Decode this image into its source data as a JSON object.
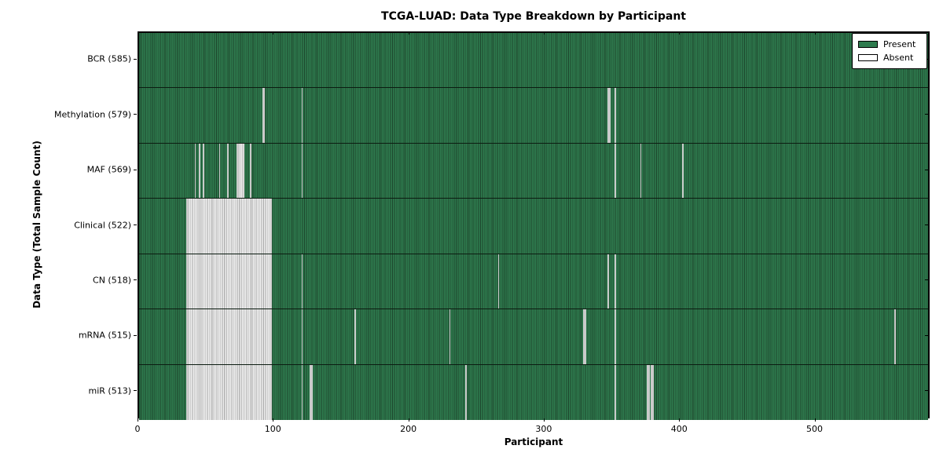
{
  "chart_data": {
    "type": "heatmap",
    "title": "TCGA-LUAD: Data Type Breakdown by Participant",
    "xlabel": "Participant",
    "ylabel": "Data Type (Total Sample Count)",
    "x_range": [
      0,
      585
    ],
    "x_ticks": [
      0,
      100,
      200,
      300,
      400,
      500
    ],
    "grid": false,
    "legend_position": "upper right",
    "legend": [
      {
        "label": "Present",
        "color": "#2e7b4e"
      },
      {
        "label": "Absent",
        "color": "#ffffff"
      }
    ],
    "present_color": "#2e7b4e",
    "present_edge_color": "#1d452c",
    "absent_color": "#efefef",
    "absent_edge_color": "#a4a4a4",
    "rows": [
      {
        "name": "BCR",
        "label": "BCR (585)",
        "present_count": 585,
        "absent_ranges": []
      },
      {
        "name": "Methylation",
        "label": "Methylation (579)",
        "present_count": 579,
        "absent_ranges": [
          [
            91,
            92
          ],
          [
            120,
            120
          ],
          [
            346,
            347
          ],
          [
            351,
            351
          ]
        ]
      },
      {
        "name": "MAF",
        "label": "MAF (569)",
        "present_count": 569,
        "absent_ranges": [
          [
            41,
            41
          ],
          [
            44,
            44
          ],
          [
            47,
            47
          ],
          [
            59,
            59
          ],
          [
            65,
            65
          ],
          [
            72,
            77
          ],
          [
            82,
            82
          ],
          [
            120,
            120
          ],
          [
            351,
            351
          ],
          [
            370,
            370
          ],
          [
            401,
            401
          ]
        ]
      },
      {
        "name": "Clinical",
        "label": "Clinical (522)",
        "present_count": 522,
        "absent_ranges": [
          [
            35,
            97
          ]
        ]
      },
      {
        "name": "CN",
        "label": "CN (518)",
        "present_count": 518,
        "absent_ranges": [
          [
            35,
            97
          ],
          [
            120,
            120
          ],
          [
            265,
            265
          ],
          [
            346,
            346
          ],
          [
            351,
            351
          ]
        ]
      },
      {
        "name": "mRNA",
        "label": "mRNA (515)",
        "present_count": 515,
        "absent_ranges": [
          [
            35,
            97
          ],
          [
            120,
            120
          ],
          [
            159,
            159
          ],
          [
            229,
            229
          ],
          [
            328,
            329
          ],
          [
            351,
            351
          ],
          [
            558,
            558
          ]
        ]
      },
      {
        "name": "miR",
        "label": "miR (513)",
        "present_count": 513,
        "absent_ranges": [
          [
            35,
            97
          ],
          [
            120,
            120
          ],
          [
            126,
            127
          ],
          [
            241,
            241
          ],
          [
            351,
            351
          ],
          [
            375,
            376
          ],
          [
            378,
            379
          ]
        ]
      }
    ]
  }
}
